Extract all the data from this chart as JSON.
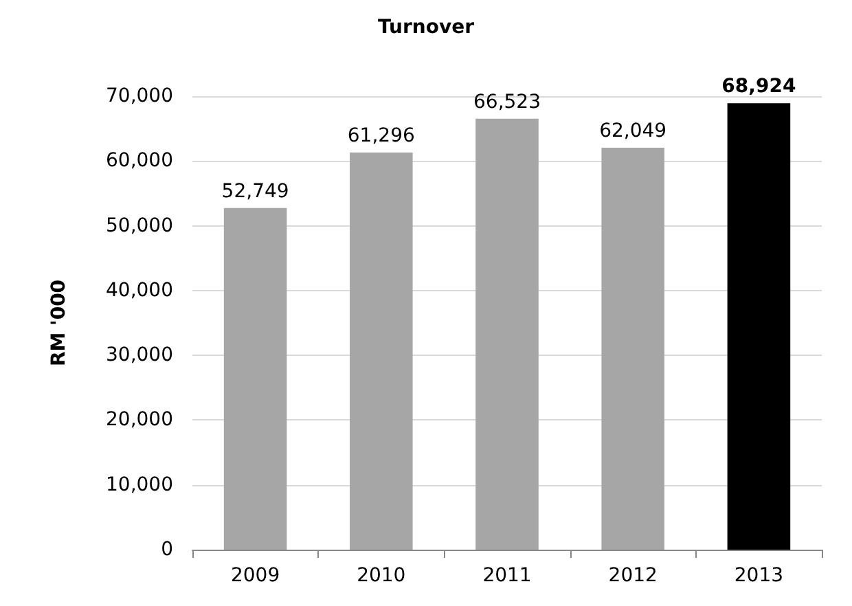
{
  "chart_data": {
    "type": "bar",
    "title": "Turnover",
    "ylabel": "RM '000",
    "categories": [
      "2009",
      "2010",
      "2011",
      "2012",
      "2013"
    ],
    "values": [
      52749,
      61296,
      66523,
      62049,
      68924
    ],
    "value_labels": [
      "52,749",
      "61,296",
      "66,523",
      "62,049",
      "68,924"
    ],
    "colors": [
      "#a6a6a6",
      "#a6a6a6",
      "#a6a6a6",
      "#a6a6a6",
      "#000000"
    ],
    "ylim": [
      0,
      70000
    ],
    "yticks": [
      0,
      {
        "value": 10000,
        "label": "10,000"
      },
      {
        "value": 20000,
        "label": "20,000"
      },
      {
        "value": 30000,
        "label": "30,000"
      },
      {
        "value": 40000,
        "label": "40,000"
      },
      {
        "value": 50000,
        "label": "50,000"
      },
      {
        "value": 60000,
        "label": "60,000"
      },
      {
        "value": 70000,
        "label": "70,000"
      }
    ],
    "grid": "y"
  }
}
